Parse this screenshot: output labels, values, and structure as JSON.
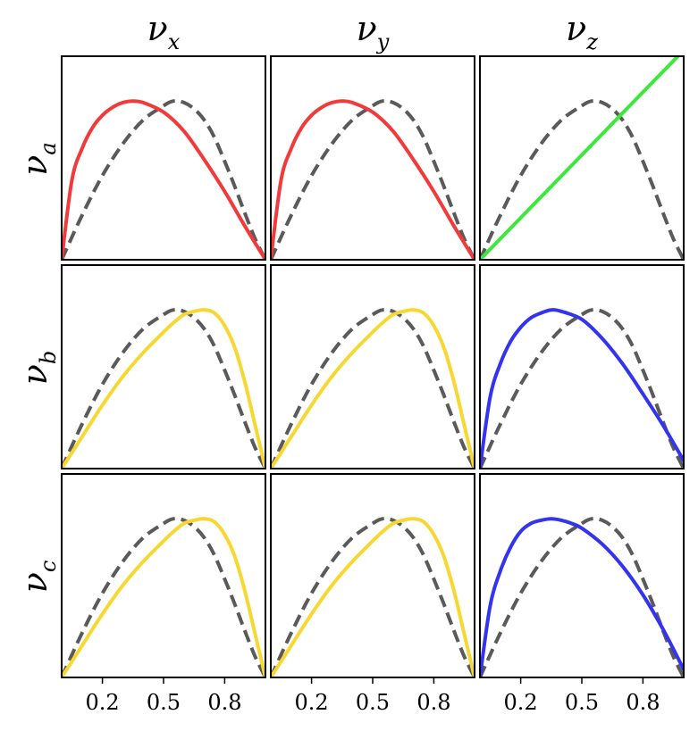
{
  "chart_data": {
    "type": "line",
    "title": "",
    "layout": "3x3 grid of small multiples",
    "column_titles": [
      {
        "base": "ν",
        "sub": "x"
      },
      {
        "base": "ν",
        "sub": "y"
      },
      {
        "base": "ν",
        "sub": "z"
      }
    ],
    "row_titles": [
      {
        "base": "ν",
        "sub": "a"
      },
      {
        "base": "ν",
        "sub": "b"
      },
      {
        "base": "ν",
        "sub": "c"
      }
    ],
    "xlim": [
      0,
      1
    ],
    "ylim": [
      0,
      1
    ],
    "x_ticks": [
      0.2,
      0.5,
      0.8
    ],
    "x_tick_labels": [
      "0.2",
      "0.5",
      "0.8"
    ],
    "y_ticks_shown": false,
    "grid": false,
    "colors": {
      "red": "#f23a3a",
      "yellow": "#f7d833",
      "green": "#3de83d",
      "blue": "#3333f0",
      "reference": "#5a5a5a"
    },
    "reference_curve": {
      "style": "dashed",
      "color_key": "reference",
      "x": [
        0,
        0.1,
        0.2,
        0.3,
        0.4,
        0.5,
        0.55,
        0.6,
        0.65,
        0.7,
        0.75,
        0.8,
        0.85,
        0.9,
        0.95,
        1.0
      ],
      "y": [
        0,
        0.28,
        0.53,
        0.73,
        0.88,
        0.97,
        1.0,
        0.99,
        0.95,
        0.88,
        0.77,
        0.62,
        0.46,
        0.29,
        0.13,
        0
      ]
    },
    "panels": [
      [
        {
          "color_key": "red",
          "x": [
            0,
            0.05,
            0.1,
            0.15,
            0.2,
            0.25,
            0.3,
            0.35,
            0.4,
            0.5,
            0.6,
            0.7,
            0.8,
            0.9,
            1.0
          ],
          "y": [
            0,
            0.5,
            0.7,
            0.83,
            0.91,
            0.96,
            0.99,
            1.0,
            0.99,
            0.93,
            0.81,
            0.63,
            0.43,
            0.21,
            0
          ]
        },
        {
          "color_key": "red",
          "x": [
            0,
            0.05,
            0.1,
            0.15,
            0.2,
            0.25,
            0.3,
            0.35,
            0.4,
            0.5,
            0.6,
            0.7,
            0.8,
            0.9,
            1.0
          ],
          "y": [
            0,
            0.5,
            0.7,
            0.83,
            0.91,
            0.96,
            0.99,
            1.0,
            0.99,
            0.93,
            0.81,
            0.63,
            0.43,
            0.21,
            0
          ]
        },
        {
          "color_key": "green",
          "x": [
            0,
            1
          ],
          "y": [
            0,
            1.32
          ]
        }
      ],
      [
        {
          "color_key": "yellow",
          "x": [
            0,
            0.1,
            0.2,
            0.3,
            0.4,
            0.5,
            0.55,
            0.6,
            0.65,
            0.7,
            0.75,
            0.8,
            0.85,
            0.9,
            0.95,
            1.0
          ],
          "y": [
            0,
            0.2,
            0.4,
            0.58,
            0.73,
            0.86,
            0.92,
            0.97,
            0.99,
            1.0,
            0.98,
            0.9,
            0.76,
            0.54,
            0.27,
            0
          ]
        },
        {
          "color_key": "yellow",
          "x": [
            0,
            0.1,
            0.2,
            0.3,
            0.4,
            0.5,
            0.55,
            0.6,
            0.65,
            0.7,
            0.75,
            0.8,
            0.85,
            0.9,
            0.95,
            1.0
          ],
          "y": [
            0,
            0.2,
            0.4,
            0.58,
            0.73,
            0.86,
            0.92,
            0.97,
            0.99,
            1.0,
            0.98,
            0.9,
            0.76,
            0.54,
            0.27,
            0
          ]
        },
        {
          "color_key": "blue",
          "x": [
            0,
            0.05,
            0.1,
            0.15,
            0.2,
            0.25,
            0.3,
            0.35,
            0.4,
            0.5,
            0.6,
            0.7,
            0.8,
            0.9,
            1.0
          ],
          "y": [
            0,
            0.45,
            0.66,
            0.8,
            0.89,
            0.95,
            0.98,
            1.0,
            0.99,
            0.94,
            0.82,
            0.66,
            0.47,
            0.27,
            0.05
          ]
        }
      ],
      [
        {
          "color_key": "yellow",
          "x": [
            0,
            0.1,
            0.2,
            0.3,
            0.4,
            0.5,
            0.55,
            0.6,
            0.65,
            0.7,
            0.75,
            0.8,
            0.85,
            0.9,
            0.95,
            1.0
          ],
          "y": [
            0,
            0.2,
            0.4,
            0.58,
            0.73,
            0.86,
            0.92,
            0.97,
            0.99,
            1.0,
            0.98,
            0.9,
            0.76,
            0.54,
            0.27,
            0
          ]
        },
        {
          "color_key": "yellow",
          "x": [
            0,
            0.1,
            0.2,
            0.3,
            0.4,
            0.5,
            0.55,
            0.6,
            0.65,
            0.7,
            0.75,
            0.8,
            0.85,
            0.9,
            0.95,
            1.0
          ],
          "y": [
            0,
            0.2,
            0.4,
            0.58,
            0.73,
            0.86,
            0.92,
            0.97,
            0.99,
            1.0,
            0.98,
            0.9,
            0.76,
            0.54,
            0.27,
            0
          ]
        },
        {
          "color_key": "blue",
          "x": [
            0,
            0.05,
            0.1,
            0.15,
            0.2,
            0.25,
            0.3,
            0.35,
            0.4,
            0.45,
            0.5,
            0.6,
            0.7,
            0.8,
            0.9,
            1.0
          ],
          "y": [
            0,
            0.45,
            0.67,
            0.82,
            0.92,
            0.97,
            0.99,
            1.0,
            0.99,
            0.97,
            0.94,
            0.84,
            0.7,
            0.52,
            0.3,
            0.05
          ]
        }
      ]
    ]
  }
}
